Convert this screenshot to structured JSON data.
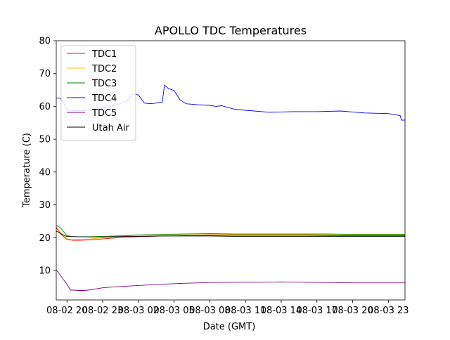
{
  "chart_data": {
    "type": "line",
    "title": "APOLLO TDC Temperatures",
    "xlabel": "Date (GMT)",
    "ylabel": "Temperature (C)",
    "x_unit": "hours since 08-02 20",
    "xlim": [
      -0.9,
      28.4
    ],
    "ylim": [
      1,
      80
    ],
    "yticks": [
      10,
      20,
      30,
      40,
      50,
      60,
      70,
      80
    ],
    "xticks": [
      {
        "x": 0,
        "label": "08-02 20"
      },
      {
        "x": 3,
        "label": "08-02 23"
      },
      {
        "x": 6,
        "label": "08-03 02"
      },
      {
        "x": 9,
        "label": "08-03 05"
      },
      {
        "x": 12,
        "label": "08-03 08"
      },
      {
        "x": 15,
        "label": "08-03 11"
      },
      {
        "x": 18,
        "label": "08-03 14"
      },
      {
        "x": 21,
        "label": "08-03 17"
      },
      {
        "x": 24,
        "label": "08-03 20"
      },
      {
        "x": 27,
        "label": "08-03 23"
      }
    ],
    "legend_position": "upper-left",
    "series": [
      {
        "name": "TDC1",
        "color": "#ff0000",
        "x": [
          -0.9,
          -0.5,
          0.0,
          0.5,
          1,
          2,
          3,
          4,
          5,
          6,
          8,
          10,
          12,
          14,
          16,
          18,
          20,
          22,
          24,
          26,
          28.4
        ],
        "y": [
          23.0,
          21.0,
          19.4,
          19.2,
          19.2,
          19.3,
          19.6,
          19.9,
          20.1,
          20.3,
          20.5,
          20.6,
          20.7,
          20.7,
          20.7,
          20.7,
          20.7,
          20.6,
          20.6,
          20.6,
          20.6
        ]
      },
      {
        "name": "TDC2",
        "color": "#ffbf00",
        "x": [
          -0.9,
          -0.5,
          0.0,
          0.5,
          1,
          2,
          3,
          4,
          5,
          6,
          8,
          10,
          12,
          14,
          16,
          18,
          20,
          22,
          24,
          26,
          28.4
        ],
        "y": [
          23.3,
          21.3,
          19.6,
          19.4,
          19.4,
          19.6,
          19.9,
          20.2,
          20.4,
          20.5,
          20.7,
          20.8,
          20.9,
          20.9,
          20.9,
          20.9,
          20.9,
          20.9,
          20.8,
          20.8,
          20.8
        ]
      },
      {
        "name": "TDC3",
        "color": "#008000",
        "x": [
          -0.9,
          -0.5,
          0.0,
          0.5,
          1,
          2,
          3,
          4,
          5,
          6,
          8,
          10,
          12,
          14,
          16,
          18,
          20,
          22,
          24,
          26,
          28.4
        ],
        "y": [
          23.8,
          22.8,
          20.6,
          20.3,
          20.3,
          20.3,
          20.4,
          20.5,
          20.6,
          20.8,
          21.0,
          21.1,
          21.2,
          21.1,
          21.1,
          21.1,
          21.1,
          21.1,
          21.0,
          21.0,
          21.0
        ]
      },
      {
        "name": "TDC4",
        "color": "#0000ff",
        "x": [
          -0.9,
          -0.6,
          -0.3,
          0.0,
          0.5,
          1,
          2,
          3,
          4,
          5,
          5.5,
          6,
          6.5,
          7,
          7.5,
          8,
          8.2,
          8.5,
          9,
          9.5,
          10,
          11,
          12,
          12.5,
          13,
          14,
          15,
          17,
          19,
          21,
          23,
          25,
          27,
          28.0,
          28.1,
          28.4
        ],
        "y": [
          62.5,
          62.5,
          61.2,
          59.0,
          58.7,
          58.8,
          58.8,
          59.5,
          60.2,
          61.5,
          63.8,
          63.5,
          61.0,
          60.8,
          61.0,
          61.3,
          66.5,
          65.5,
          64.8,
          62.0,
          60.8,
          60.5,
          60.3,
          60.0,
          60.2,
          59.2,
          58.8,
          58.2,
          58.4,
          58.4,
          58.6,
          58.0,
          57.8,
          57.2,
          55.8,
          55.8
        ]
      },
      {
        "name": "TDC5",
        "color": "#800080",
        "x": [
          -0.9,
          -0.6,
          -0.3,
          0.0,
          0.3,
          0.6,
          1,
          1.5,
          2,
          3,
          4,
          6,
          8,
          10,
          12,
          14,
          16,
          18,
          20,
          22,
          24,
          26,
          28.4
        ],
        "y": [
          10.1,
          8.8,
          7.2,
          5.8,
          4.0,
          4.0,
          3.9,
          3.9,
          4.1,
          4.7,
          5.0,
          5.4,
          5.8,
          6.1,
          6.3,
          6.4,
          6.4,
          6.5,
          6.4,
          6.3,
          6.2,
          6.2,
          6.2
        ]
      },
      {
        "name": "Utah Air",
        "color": "#000000",
        "x": [
          -0.9,
          -0.5,
          -0.2,
          0.0,
          1,
          2,
          3,
          4,
          5,
          6,
          8,
          10,
          12,
          14,
          16,
          18,
          20,
          22,
          24,
          26,
          28.4
        ],
        "y": [
          22.0,
          21.2,
          20.6,
          20.4,
          20.3,
          20.2,
          20.2,
          20.3,
          20.4,
          20.4,
          20.5,
          20.5,
          20.5,
          20.4,
          20.4,
          20.4,
          20.4,
          20.4,
          20.4,
          20.4,
          20.4
        ]
      }
    ]
  }
}
